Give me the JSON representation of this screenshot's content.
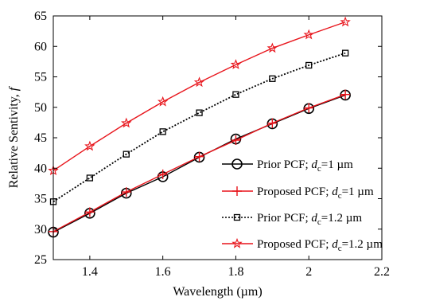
{
  "chart_data": {
    "type": "line",
    "xlabel": "Wavelength (µm)",
    "ylabel": "Relative Sentivity, f",
    "ylabel_parts": {
      "main": "Relative Sentivity, ",
      "italic": "f"
    },
    "xlim": [
      1.3,
      2.2
    ],
    "ylim": [
      25,
      65
    ],
    "xticks": [
      1.4,
      1.6,
      1.8,
      2,
      2.2
    ],
    "xtick_labels": [
      "1.4",
      "1.6",
      "1.8",
      "2",
      "2.2"
    ],
    "yticks": [
      25,
      30,
      35,
      40,
      45,
      50,
      55,
      60,
      65
    ],
    "ytick_labels": [
      "25",
      "30",
      "35",
      "40",
      "45",
      "50",
      "55",
      "60",
      "65"
    ],
    "grid": false,
    "legend_position": "lower-right",
    "x": [
      1.3,
      1.4,
      1.5,
      1.6,
      1.7,
      1.8,
      1.9,
      2.0,
      2.1
    ],
    "series": [
      {
        "name": "Prior PCF; dc=1 µm",
        "legend": {
          "pre": "Prior PCF; ",
          "var": "d",
          "sub": "c",
          "post": "=1 µm"
        },
        "color": "#000000",
        "dash": "none",
        "marker": "circle",
        "values": [
          29.5,
          32.6,
          35.9,
          38.6,
          41.8,
          44.8,
          47.3,
          49.8,
          52.0
        ]
      },
      {
        "name": "Proposed PCF; dc=1 µm",
        "legend": {
          "pre": "Proposed PCF; ",
          "var": "d",
          "sub": "c",
          "post": "=1 µm"
        },
        "color": "#e8141b",
        "dash": "none",
        "marker": "plus",
        "values": [
          29.6,
          32.8,
          36.1,
          39.0,
          41.9,
          44.6,
          47.4,
          49.9,
          52.1
        ]
      },
      {
        "name": "Prior PCF; dc=1.2 µm",
        "legend": {
          "pre": "Prior PCF; ",
          "var": "d",
          "sub": "c",
          "post": "=1.2 µm"
        },
        "color": "#000000",
        "dash": "2,2",
        "marker": "square",
        "values": [
          34.5,
          38.4,
          42.3,
          46.0,
          49.1,
          52.1,
          54.7,
          56.9,
          58.9
        ]
      },
      {
        "name": "Proposed PCF; dc=1.2 µm",
        "legend": {
          "pre": "Proposed PCF; ",
          "var": "d",
          "sub": "c",
          "post": "=1.2 µm"
        },
        "color": "#e8141b",
        "dash": "none",
        "marker": "star",
        "values": [
          39.6,
          43.6,
          47.4,
          50.9,
          54.1,
          57.0,
          59.7,
          61.9,
          64.0
        ]
      }
    ]
  }
}
